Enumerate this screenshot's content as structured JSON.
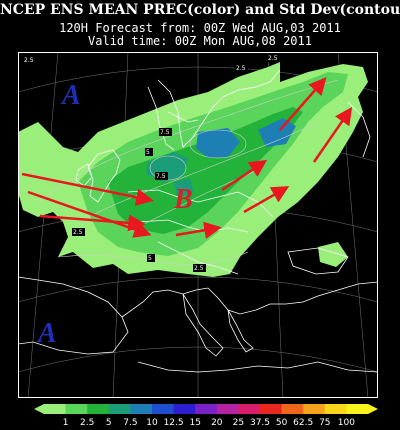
{
  "header": {
    "line1": "NCEP ENS MEAN PREC(color) and Std Dev(contour)",
    "line2": "120H Forecast from: 00Z Wed AUG,03 2011",
    "line3": "Valid time: 00Z Mon AUG,08 2011"
  },
  "map": {
    "labels": [
      {
        "text": "A",
        "color": "#1f2fb8"
      },
      {
        "text": "B",
        "color": "#d6202a"
      },
      {
        "text": "A",
        "color": "#1f2fb8"
      }
    ],
    "contour_labels": [
      "2.5",
      "2.5",
      "7.5",
      "7.5",
      "5",
      "2.5",
      "2.5",
      "5",
      "2.5"
    ]
  },
  "colorbar": {
    "ticks": [
      "1",
      "2.5",
      "5",
      "7.5",
      "10",
      "12.5",
      "15",
      "20",
      "25",
      "37.5",
      "50",
      "62.5",
      "75",
      "100"
    ],
    "colors": [
      "#9aee7a",
      "#5ad45a",
      "#23b23a",
      "#1c9d7a",
      "#1e7fb4",
      "#1f4fcf",
      "#2b1fd0",
      "#7a22c8",
      "#b423a4",
      "#d81e6a",
      "#e8281e",
      "#f0641c",
      "#f7a21b",
      "#fbd51a",
      "#f8f21a"
    ]
  }
}
